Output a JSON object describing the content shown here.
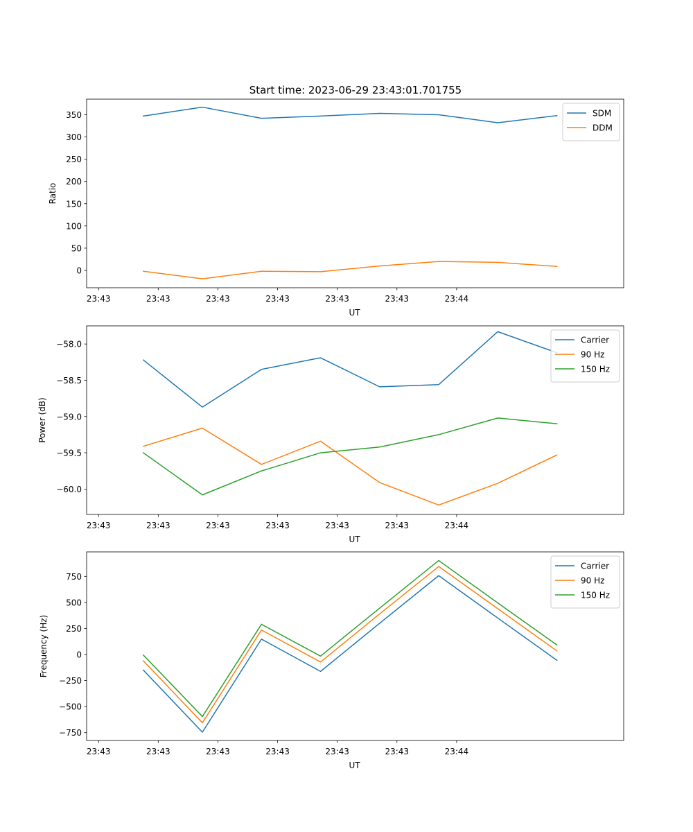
{
  "figure": {
    "title": "Start time: 2023-06-29 23:43:01.701755"
  },
  "colors": {
    "blue": "#1f77b4",
    "orange": "#ff7f0e",
    "green": "#2ca02c",
    "axis": "#000000",
    "legend_border": "#cccccc"
  },
  "chart_data": [
    {
      "type": "line",
      "xlabel": "UT",
      "ylabel": "Ratio",
      "x_tick_labels": [
        "23:43",
        "23:43",
        "23:43",
        "23:43",
        "23:43",
        "23:43",
        "23:44"
      ],
      "xlim": [
        -0.2,
        8.8
      ],
      "x": [
        0.75,
        1.74,
        2.73,
        3.72,
        4.71,
        5.7,
        6.69,
        7.68
      ],
      "ylim": [
        -39,
        385
      ],
      "yticks": [
        0,
        50,
        100,
        150,
        200,
        250,
        300,
        350
      ],
      "grid": false,
      "legend_position": "top-right",
      "series": [
        {
          "name": "SDM",
          "color": "#1f77b4",
          "values": [
            347,
            367,
            342,
            347,
            353,
            350,
            332,
            348
          ]
        },
        {
          "name": "DDM",
          "color": "#ff7f0e",
          "values": [
            -2,
            -19,
            -2,
            -3,
            10,
            20,
            18,
            9
          ]
        }
      ]
    },
    {
      "type": "line",
      "xlabel": "UT",
      "ylabel": "Power (dB)",
      "x_tick_labels": [
        "23:43",
        "23:43",
        "23:43",
        "23:43",
        "23:43",
        "23:43",
        "23:44"
      ],
      "xlim": [
        -0.2,
        8.8
      ],
      "x": [
        0.75,
        1.74,
        2.73,
        3.72,
        4.71,
        5.7,
        6.69,
        7.68
      ],
      "ylim": [
        -60.35,
        -57.75
      ],
      "yticks": [
        -60.0,
        -59.5,
        -59.0,
        -58.5,
        -58.0
      ],
      "ytick_labels": [
        "−60.0",
        "−59.5",
        "−59.0",
        "−58.5",
        "−58.0"
      ],
      "grid": false,
      "legend_position": "top-right",
      "series": [
        {
          "name": "Carrier",
          "color": "#1f77b4",
          "values": [
            -58.22,
            -58.87,
            -58.35,
            -58.19,
            -58.59,
            -58.56,
            -57.83,
            -58.12
          ]
        },
        {
          "name": "90 Hz",
          "color": "#ff7f0e",
          "values": [
            -59.41,
            -59.16,
            -59.66,
            -59.34,
            -59.91,
            -60.22,
            -59.92,
            -59.53
          ]
        },
        {
          "name": "150 Hz",
          "color": "#2ca02c",
          "values": [
            -59.5,
            -60.08,
            -59.75,
            -59.5,
            -59.42,
            -59.25,
            -59.02,
            -59.1
          ]
        }
      ]
    },
    {
      "type": "line",
      "xlabel": "UT",
      "ylabel": "Frequency (Hz)",
      "x_tick_labels": [
        "23:43",
        "23:43",
        "23:43",
        "23:43",
        "23:43",
        "23:43",
        "23:44"
      ],
      "xlim": [
        -0.2,
        8.8
      ],
      "x": [
        0.75,
        1.74,
        2.73,
        3.72,
        4.71,
        5.7,
        6.69,
        7.68
      ],
      "ylim": [
        -825,
        985
      ],
      "yticks": [
        -750,
        -500,
        -250,
        0,
        250,
        500,
        750
      ],
      "ytick_labels": [
        "−750",
        "−500",
        "−250",
        "0",
        "250",
        "500",
        "750"
      ],
      "grid": false,
      "legend_position": "top-right",
      "series": [
        {
          "name": "Carrier",
          "color": "#1f77b4",
          "values": [
            -150,
            -745,
            148,
            -162,
            300,
            757,
            350,
            -55
          ]
        },
        {
          "name": "90 Hz",
          "color": "#ff7f0e",
          "values": [
            -60,
            -655,
            235,
            -72,
            390,
            845,
            440,
            35
          ]
        },
        {
          "name": "150 Hz",
          "color": "#2ca02c",
          "values": [
            -5,
            -595,
            290,
            -15,
            445,
            902,
            495,
            92
          ]
        }
      ]
    }
  ]
}
